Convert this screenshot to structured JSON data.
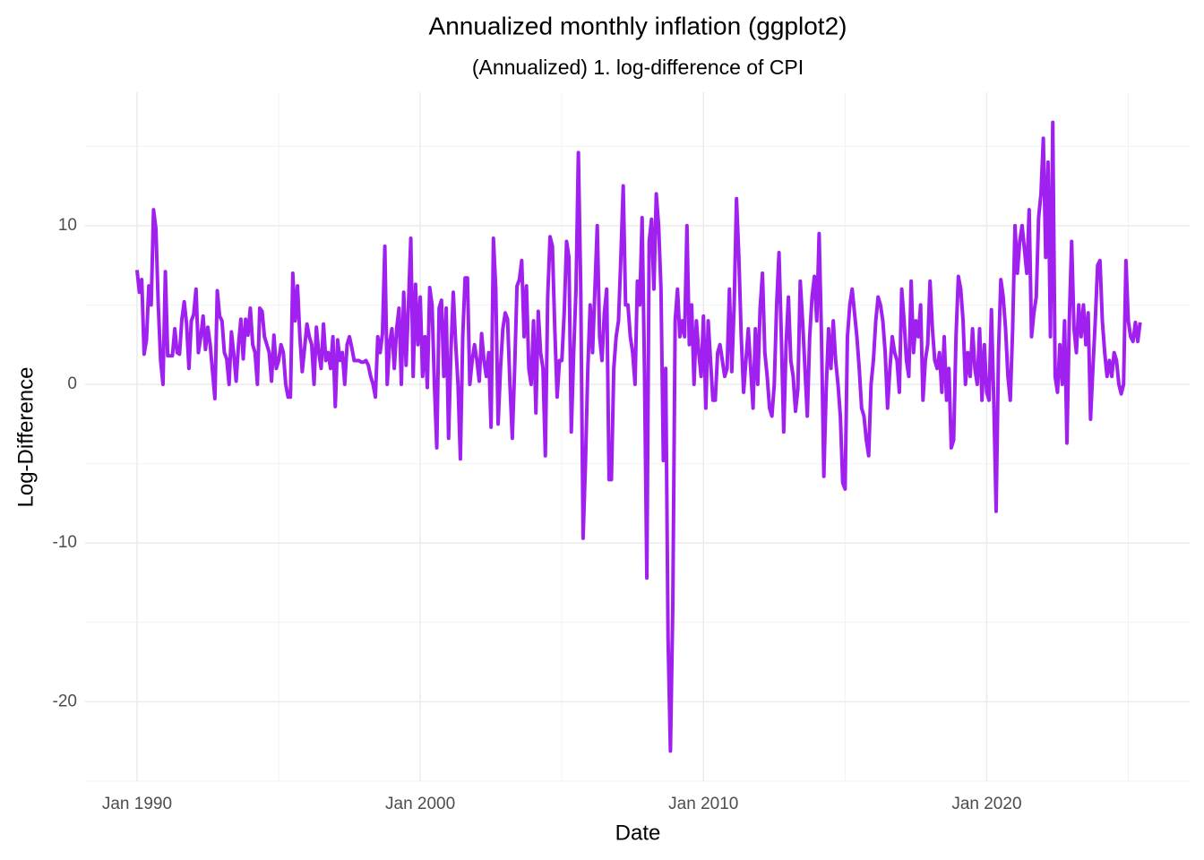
{
  "chart_data": {
    "type": "line",
    "title": "Annualized monthly inflation (ggplot2)",
    "subtitle": "(Annualized) 1. log-difference of CPI",
    "x_label": "Date",
    "y_label": "Log-Difference",
    "grid": true,
    "xlim": [
      "1988-03",
      "2027-03"
    ],
    "xticks": [
      {
        "value": "1990-01",
        "label": "Jan 1990"
      },
      {
        "value": "2000-01",
        "label": "Jan 2000"
      },
      {
        "value": "2010-01",
        "label": "Jan 2010"
      },
      {
        "value": "2020-01",
        "label": "Jan 2020"
      }
    ],
    "ylim": [
      -25,
      18.4
    ],
    "yticks": [
      -20,
      -10,
      0,
      10
    ],
    "x": [
      "1990-01",
      "1990-02",
      "1990-03",
      "1990-04",
      "1990-05",
      "1990-06",
      "1990-07",
      "1990-08",
      "1990-09",
      "1990-10",
      "1990-11",
      "1990-12",
      "1991-01",
      "1991-02",
      "1991-03",
      "1991-04",
      "1991-05",
      "1991-06",
      "1991-07",
      "1991-08",
      "1991-09",
      "1991-10",
      "1991-11",
      "1991-12",
      "1992-01",
      "1992-02",
      "1992-03",
      "1992-04",
      "1992-05",
      "1992-06",
      "1992-07",
      "1992-08",
      "1992-09",
      "1992-10",
      "1992-11",
      "1992-12",
      "1993-01",
      "1993-02",
      "1993-03",
      "1993-04",
      "1993-05",
      "1993-06",
      "1993-07",
      "1993-08",
      "1993-09",
      "1993-10",
      "1993-11",
      "1993-12",
      "1994-01",
      "1994-02",
      "1994-03",
      "1994-04",
      "1994-05",
      "1994-06",
      "1994-07",
      "1994-08",
      "1994-09",
      "1994-10",
      "1994-11",
      "1994-12",
      "1995-01",
      "1995-02",
      "1995-03",
      "1995-04",
      "1995-05",
      "1995-06",
      "1995-07",
      "1995-08",
      "1995-09",
      "1995-10",
      "1995-11",
      "1995-12",
      "1996-01",
      "1996-02",
      "1996-03",
      "1996-04",
      "1996-05",
      "1996-06",
      "1996-07",
      "1996-08",
      "1996-09",
      "1996-10",
      "1996-11",
      "1996-12",
      "1997-01",
      "1997-02",
      "1997-03",
      "1997-04",
      "1997-05",
      "1997-06",
      "1997-07",
      "1997-08",
      "1997-09",
      "1997-10",
      "1997-11",
      "1997-12",
      "1998-01",
      "1998-02",
      "1998-03",
      "1998-04",
      "1998-05",
      "1998-06",
      "1998-07",
      "1998-08",
      "1998-09",
      "1998-10",
      "1998-11",
      "1998-12",
      "1999-01",
      "1999-02",
      "1999-03",
      "1999-04",
      "1999-05",
      "1999-06",
      "1999-07",
      "1999-08",
      "1999-09",
      "1999-10",
      "1999-11",
      "1999-12",
      "2000-01",
      "2000-02",
      "2000-03",
      "2000-04",
      "2000-05",
      "2000-06",
      "2000-07",
      "2000-08",
      "2000-09",
      "2000-10",
      "2000-11",
      "2000-12",
      "2001-01",
      "2001-02",
      "2001-03",
      "2001-04",
      "2001-05",
      "2001-06",
      "2001-07",
      "2001-08",
      "2001-09",
      "2001-10",
      "2001-11",
      "2001-12",
      "2002-01",
      "2002-02",
      "2002-03",
      "2002-04",
      "2002-05",
      "2002-06",
      "2002-07",
      "2002-08",
      "2002-09",
      "2002-10",
      "2002-11",
      "2002-12",
      "2003-01",
      "2003-02",
      "2003-03",
      "2003-04",
      "2003-05",
      "2003-06",
      "2003-07",
      "2003-08",
      "2003-09",
      "2003-10",
      "2003-11",
      "2003-12",
      "2004-01",
      "2004-02",
      "2004-03",
      "2004-04",
      "2004-05",
      "2004-06",
      "2004-07",
      "2004-08",
      "2004-09",
      "2004-10",
      "2004-11",
      "2004-12",
      "2005-01",
      "2005-02",
      "2005-03",
      "2005-04",
      "2005-05",
      "2005-06",
      "2005-07",
      "2005-08",
      "2005-09",
      "2005-10",
      "2005-11",
      "2005-12",
      "2006-01",
      "2006-02",
      "2006-03",
      "2006-04",
      "2006-05",
      "2006-06",
      "2006-07",
      "2006-08",
      "2006-09",
      "2006-10",
      "2006-11",
      "2006-12",
      "2007-01",
      "2007-02",
      "2007-03",
      "2007-04",
      "2007-05",
      "2007-06",
      "2007-07",
      "2007-08",
      "2007-09",
      "2007-10",
      "2007-11",
      "2007-12",
      "2008-01",
      "2008-02",
      "2008-03",
      "2008-04",
      "2008-05",
      "2008-06",
      "2008-07",
      "2008-08",
      "2008-09",
      "2008-10",
      "2008-11",
      "2008-12",
      "2009-01",
      "2009-02",
      "2009-03",
      "2009-04",
      "2009-05",
      "2009-06",
      "2009-07",
      "2009-08",
      "2009-09",
      "2009-10",
      "2009-11",
      "2009-12",
      "2010-01",
      "2010-02",
      "2010-03",
      "2010-04",
      "2010-05",
      "2010-06",
      "2010-07",
      "2010-08",
      "2010-09",
      "2010-10",
      "2010-11",
      "2010-12",
      "2011-01",
      "2011-02",
      "2011-03",
      "2011-04",
      "2011-05",
      "2011-06",
      "2011-07",
      "2011-08",
      "2011-09",
      "2011-10",
      "2011-11",
      "2011-12",
      "2012-01",
      "2012-02",
      "2012-03",
      "2012-04",
      "2012-05",
      "2012-06",
      "2012-07",
      "2012-08",
      "2012-09",
      "2012-10",
      "2012-11",
      "2012-12",
      "2013-01",
      "2013-02",
      "2013-03",
      "2013-04",
      "2013-05",
      "2013-06",
      "2013-07",
      "2013-08",
      "2013-09",
      "2013-10",
      "2013-11",
      "2013-12",
      "2014-01",
      "2014-02",
      "2014-03",
      "2014-04",
      "2014-05",
      "2014-06",
      "2014-07",
      "2014-08",
      "2014-09",
      "2014-10",
      "2014-11",
      "2014-12",
      "2015-01",
      "2015-02",
      "2015-03",
      "2015-04",
      "2015-05",
      "2015-06",
      "2015-07",
      "2015-08",
      "2015-09",
      "2015-10",
      "2015-11",
      "2015-12",
      "2016-01",
      "2016-02",
      "2016-03",
      "2016-04",
      "2016-05",
      "2016-06",
      "2016-07",
      "2016-08",
      "2016-09",
      "2016-10",
      "2016-11",
      "2016-12",
      "2017-01",
      "2017-02",
      "2017-03",
      "2017-04",
      "2017-05",
      "2017-06",
      "2017-07",
      "2017-08",
      "2017-09",
      "2017-10",
      "2017-11",
      "2017-12",
      "2018-01",
      "2018-02",
      "2018-03",
      "2018-04",
      "2018-05",
      "2018-06",
      "2018-07",
      "2018-08",
      "2018-09",
      "2018-10",
      "2018-11",
      "2018-12",
      "2019-01",
      "2019-02",
      "2019-03",
      "2019-04",
      "2019-05",
      "2019-06",
      "2019-07",
      "2019-08",
      "2019-09",
      "2019-10",
      "2019-11",
      "2019-12",
      "2020-01",
      "2020-02",
      "2020-03",
      "2020-04",
      "2020-05",
      "2020-06",
      "2020-07",
      "2020-08",
      "2020-09",
      "2020-10",
      "2020-11",
      "2020-12",
      "2021-01",
      "2021-02",
      "2021-03",
      "2021-04",
      "2021-05",
      "2021-06",
      "2021-07",
      "2021-08",
      "2021-09",
      "2021-10",
      "2021-11",
      "2021-12",
      "2022-01",
      "2022-02",
      "2022-03",
      "2022-04",
      "2022-05",
      "2022-06",
      "2022-07",
      "2022-08",
      "2022-09",
      "2022-10",
      "2022-11",
      "2022-12",
      "2023-01",
      "2023-02",
      "2023-03",
      "2023-04",
      "2023-05",
      "2023-06",
      "2023-07",
      "2023-08",
      "2023-09",
      "2023-10",
      "2023-11",
      "2023-12",
      "2024-01",
      "2024-02",
      "2024-03",
      "2024-04",
      "2024-05",
      "2024-06",
      "2024-07",
      "2024-08",
      "2024-09",
      "2024-10",
      "2024-11",
      "2024-12",
      "2025-01",
      "2025-02",
      "2025-03",
      "2025-04",
      "2025-05",
      "2025-06"
    ],
    "series": [
      {
        "color": "#a020f0",
        "values": [
          7.2,
          5.8,
          6.6,
          1.9,
          2.8,
          6.2,
          5.0,
          11.0,
          9.8,
          5.0,
          1.5,
          0.0,
          7.1,
          1.8,
          1.8,
          1.8,
          3.5,
          2.0,
          1.9,
          4.1,
          5.2,
          3.8,
          1.0,
          4.0,
          4.4,
          6.0,
          2.0,
          3.0,
          4.3,
          2.2,
          3.6,
          2.5,
          0.8,
          -0.9,
          5.9,
          4.3,
          4.0,
          2.0,
          1.6,
          0.0,
          3.3,
          1.9,
          0.2,
          2.5,
          4.1,
          1.6,
          4.1,
          3.1,
          4.8,
          2.5,
          2.0,
          0.0,
          4.8,
          4.6,
          3.0,
          2.5,
          2.0,
          0.2,
          3.1,
          1.0,
          1.5,
          2.5,
          2.0,
          0.0,
          -0.8,
          -0.8,
          7.0,
          4.0,
          6.2,
          3.0,
          0.8,
          2.3,
          3.8,
          3.0,
          2.5,
          0.0,
          3.6,
          2.0,
          1.0,
          3.8,
          1.5,
          2.0,
          1.0,
          3.0,
          -1.4,
          2.8,
          1.5,
          2.0,
          0.0,
          2.5,
          3.0,
          2.3,
          1.5,
          1.5,
          1.5,
          1.4,
          1.4,
          1.5,
          1.2,
          0.5,
          0.0,
          -0.8,
          3.0,
          2.0,
          3.2,
          8.7,
          0.0,
          2.6,
          3.5,
          1.0,
          3.5,
          4.8,
          0.0,
          5.8,
          1.2,
          5.0,
          9.2,
          0.5,
          6.3,
          2.5,
          5.5,
          0.5,
          3.0,
          -0.2,
          6.1,
          5.0,
          0.0,
          -4.0,
          4.8,
          5.3,
          0.5,
          4.8,
          -3.4,
          2.1,
          5.8,
          2.6,
          0.0,
          -4.7,
          3.0,
          6.7,
          6.7,
          0.0,
          1.5,
          2.5,
          1.5,
          0.2,
          3.2,
          1.5,
          0.5,
          2.0,
          -2.7,
          9.2,
          6.0,
          -2.5,
          1.0,
          3.5,
          4.5,
          4.1,
          0.0,
          -3.4,
          1.0,
          6.2,
          6.6,
          7.8,
          3.0,
          6.2,
          1.0,
          0.0,
          4.0,
          -1.8,
          4.6,
          2.0,
          1.0,
          -4.5,
          5.5,
          9.3,
          8.7,
          3.5,
          -0.8,
          1.5,
          1.5,
          4.5,
          9.0,
          8.0,
          -3.0,
          2.0,
          6.0,
          14.6,
          6.0,
          -9.7,
          -5.0,
          1.0,
          5.0,
          2.0,
          6.0,
          10.0,
          3.0,
          1.5,
          4.5,
          6.0,
          -6.0,
          -6.0,
          1.0,
          3.0,
          4.0,
          8.0,
          12.5,
          5.0,
          5.0,
          3.0,
          2.0,
          0.0,
          6.5,
          5.0,
          10.5,
          1.0,
          -12.2,
          9.0,
          10.4,
          6.0,
          12.0,
          10.0,
          6.0,
          -4.8,
          1.0,
          -16.0,
          -23.1,
          -14.0,
          4.0,
          6.0,
          3.0,
          4.0,
          3.0,
          10.0,
          2.5,
          5.0,
          0.0,
          4.0,
          2.0,
          0.5,
          4.3,
          -1.5,
          4.0,
          1.5,
          -1.0,
          -1.0,
          2.0,
          2.5,
          1.5,
          0.5,
          1.0,
          6.0,
          0.8,
          5.0,
          11.7,
          8.0,
          3.0,
          -0.5,
          1.5,
          3.5,
          1.0,
          -1.5,
          3.5,
          0.0,
          4.8,
          7.0,
          2.0,
          0.5,
          -1.5,
          -2.0,
          0.0,
          5.0,
          8.3,
          3.0,
          -3.0,
          2.5,
          5.5,
          1.5,
          0.5,
          -1.7,
          -0.3,
          6.5,
          4.0,
          1.0,
          -2.0,
          3.0,
          5.5,
          6.8,
          4.0,
          9.5,
          3.0,
          -5.8,
          -0.3,
          3.5,
          1.0,
          4.0,
          1.5,
          0.0,
          -2.0,
          -6.2,
          -6.6,
          3.0,
          5.0,
          6.0,
          4.5,
          3.0,
          1.0,
          -1.5,
          -2.0,
          -3.5,
          -4.5,
          0.0,
          1.5,
          4.0,
          5.5,
          5.0,
          4.0,
          2.0,
          -1.5,
          1.0,
          3.0,
          2.0,
          1.5,
          -0.5,
          6.0,
          4.0,
          1.5,
          0.5,
          6.5,
          2.0,
          4.0,
          3.0,
          5.0,
          -1.0,
          1.5,
          2.5,
          6.5,
          3.5,
          1.5,
          1.0,
          2.0,
          -0.5,
          3.0,
          -1.0,
          1.0,
          -4.0,
          -3.5,
          3.0,
          6.8,
          6.0,
          4.0,
          0.0,
          2.0,
          0.5,
          3.5,
          1.0,
          0.0,
          3.5,
          -1.0,
          2.5,
          -0.5,
          -1.0,
          4.7,
          -1.0,
          -8.0,
          2.0,
          6.6,
          5.5,
          3.5,
          0.5,
          -1.0,
          3.5,
          10.0,
          7.0,
          9.0,
          10.0,
          8.5,
          7.0,
          11.0,
          3.0,
          4.5,
          5.5,
          10.5,
          12.0,
          15.5,
          8.0,
          14.0,
          3.0,
          16.5,
          0.5,
          -0.5,
          2.5,
          0.0,
          4.0,
          -3.7,
          4.0,
          9.0,
          3.5,
          2.0,
          5.0,
          3.0,
          5.0,
          2.5,
          4.5,
          -2.2,
          1.0,
          4.0,
          7.5,
          7.8,
          4.0,
          2.0,
          0.5,
          1.5,
          0.5,
          2.0,
          1.5,
          0.0,
          -0.6,
          0.0,
          7.8,
          4.0,
          3.0,
          2.7,
          3.9,
          2.7,
          3.9
        ]
      }
    ]
  }
}
